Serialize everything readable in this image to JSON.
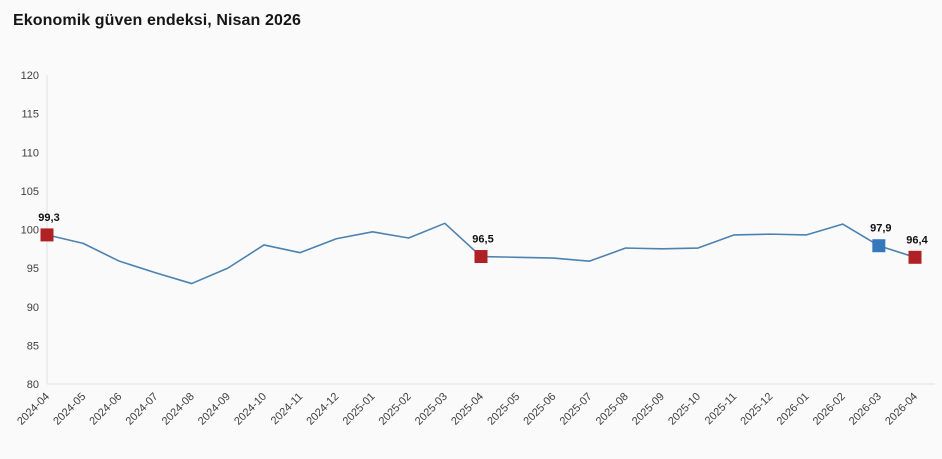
{
  "title": "Ekonomik güven endeksi, Nisan 2026",
  "chart_data": {
    "type": "line",
    "title": "Ekonomik güven endeksi, Nisan 2026",
    "xlabel": "",
    "ylabel": "",
    "ylim": [
      80,
      120
    ],
    "yticks": [
      80,
      85,
      90,
      95,
      100,
      105,
      110,
      115,
      120
    ],
    "grid": false,
    "legend": "none",
    "x": [
      "2024-04",
      "2024-05",
      "2024-06",
      "2024-07",
      "2024-08",
      "2024-09",
      "2024-10",
      "2024-11",
      "2024-12",
      "2025-01",
      "2025-02",
      "2025-03",
      "2025-04",
      "2025-05",
      "2025-06",
      "2025-07",
      "2025-08",
      "2025-09",
      "2025-10",
      "2025-11",
      "2025-12",
      "2026-01",
      "2026-02",
      "2026-03",
      "2026-04"
    ],
    "series": [
      {
        "name": "Ekonomik güven endeksi",
        "values": [
          99.3,
          98.2,
          95.9,
          94.4,
          93.0,
          95.0,
          98.0,
          97.0,
          98.8,
          99.7,
          98.9,
          100.8,
          96.5,
          96.4,
          96.3,
          95.9,
          97.6,
          97.5,
          97.6,
          99.3,
          99.4,
          99.3,
          100.7,
          97.9,
          96.4
        ]
      }
    ],
    "annotations": [
      {
        "x": "2024-04",
        "value": 99.3,
        "label": "99,3",
        "color": "#b02126"
      },
      {
        "x": "2025-04",
        "value": 96.5,
        "label": "96,5",
        "color": "#b02126"
      },
      {
        "x": "2026-03",
        "value": 97.9,
        "label": "97,9",
        "color": "#3579bc"
      },
      {
        "x": "2026-04",
        "value": 96.4,
        "label": "96,4",
        "color": "#b02126"
      }
    ],
    "colors": {
      "line": "#4d82b0",
      "axis": "#e2e2e2",
      "tick_text": "#3f3f3f",
      "value_text": "#111111",
      "marker_red": "#b02126",
      "marker_blue": "#3579bc",
      "background": "#fafafa"
    }
  }
}
